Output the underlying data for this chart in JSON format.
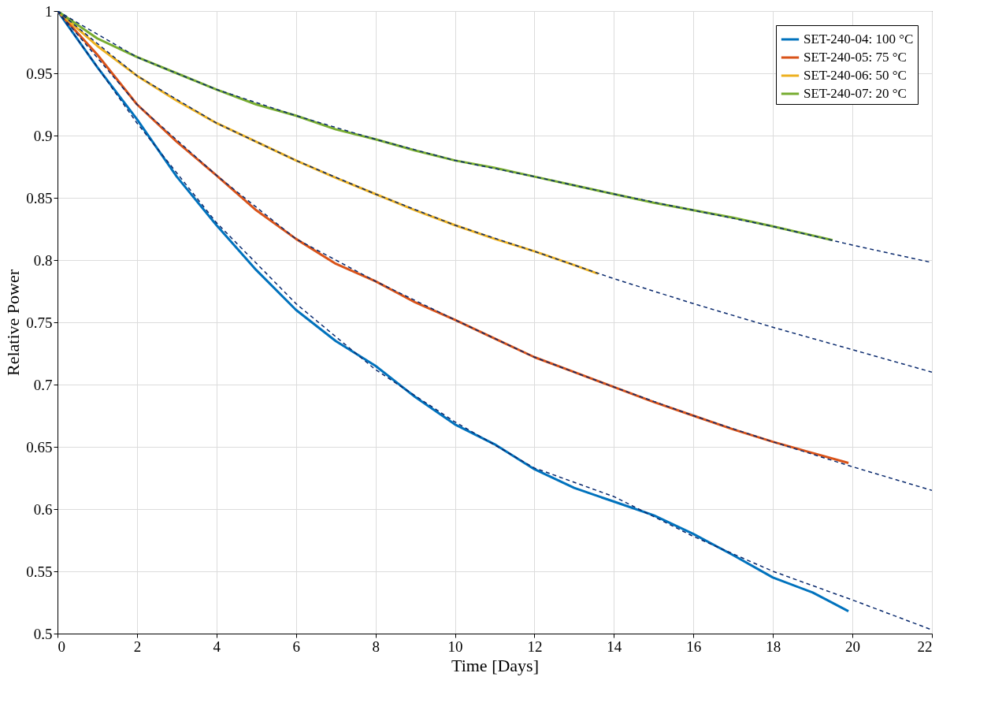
{
  "chart_data": {
    "type": "line",
    "xlabel": "Time [Days]",
    "ylabel": "Relative Power",
    "xlim": [
      0,
      22
    ],
    "ylim": [
      0.5,
      1
    ],
    "xticks": [
      0,
      2,
      4,
      6,
      8,
      10,
      12,
      14,
      16,
      18,
      20,
      22
    ],
    "yticks": [
      0.5,
      0.55,
      0.6,
      0.65,
      0.7,
      0.75,
      0.8,
      0.85,
      0.9,
      0.95,
      1
    ],
    "grid": true,
    "legend": "top right",
    "marker": "none",
    "series": [
      {
        "name": "SET-240-04: 100 °C",
        "color": "#0072bd",
        "x": [
          0,
          1,
          2,
          3,
          4,
          5,
          6,
          7,
          8,
          9,
          10,
          11,
          12,
          13,
          14,
          15,
          16,
          17,
          18,
          19,
          19.9
        ],
        "values": [
          1,
          0.955,
          0.913,
          0.867,
          0.828,
          0.792,
          0.76,
          0.735,
          0.715,
          0.69,
          0.668,
          0.652,
          0.632,
          0.617,
          0.606,
          0.595,
          0.58,
          0.563,
          0.545,
          0.533,
          0.518
        ],
        "line_style": "solid"
      },
      {
        "name": "SET-240-05:   75 °C",
        "color": "#d95319",
        "x": [
          0,
          1,
          2,
          3,
          4,
          5,
          6,
          7,
          8,
          9,
          10,
          11,
          12,
          13,
          14,
          15,
          16,
          17,
          18,
          19,
          19.9
        ],
        "values": [
          1,
          0.965,
          0.925,
          0.895,
          0.868,
          0.84,
          0.817,
          0.797,
          0.783,
          0.766,
          0.752,
          0.737,
          0.722,
          0.71,
          0.698,
          0.686,
          0.675,
          0.664,
          0.654,
          0.645,
          0.637
        ],
        "line_style": "solid"
      },
      {
        "name": "SET-240-06:   50 °C",
        "color": "#edb120",
        "x": [
          0,
          1,
          2,
          3,
          4,
          5,
          6,
          7,
          8,
          9,
          10,
          11,
          12,
          13,
          13.6
        ],
        "values": [
          1,
          0.972,
          0.948,
          0.928,
          0.91,
          0.895,
          0.88,
          0.866,
          0.853,
          0.84,
          0.828,
          0.817,
          0.807,
          0.796,
          0.789
        ],
        "line_style": "solid"
      },
      {
        "name": "SET-240-07:   20 °C",
        "color": "#77ac30",
        "x": [
          0,
          1,
          2,
          3,
          4,
          5,
          6,
          7,
          8,
          9,
          10,
          11,
          12,
          13,
          14,
          15,
          16,
          17,
          18,
          19.5
        ],
        "values": [
          1,
          0.978,
          0.963,
          0.95,
          0.937,
          0.925,
          0.916,
          0.905,
          0.897,
          0.888,
          0.88,
          0.874,
          0.867,
          0.86,
          0.853,
          0.846,
          0.84,
          0.834,
          0.827,
          0.816
        ],
        "line_style": "solid"
      },
      {
        "color": "#0a2a6e",
        "x": [
          0,
          2,
          4,
          6,
          8,
          10,
          12,
          14,
          16,
          18,
          20,
          22
        ],
        "values": [
          1,
          0.91,
          0.83,
          0.765,
          0.712,
          0.67,
          0.633,
          0.61,
          0.578,
          0.55,
          0.527,
          0.503
        ],
        "line_style": "dashed"
      },
      {
        "color": "#0a2a6e",
        "x": [
          0,
          2,
          4,
          6,
          8,
          10,
          12,
          14,
          16,
          18,
          20,
          22
        ],
        "values": [
          1,
          0.925,
          0.868,
          0.817,
          0.783,
          0.752,
          0.722,
          0.698,
          0.675,
          0.654,
          0.634,
          0.615
        ],
        "line_style": "dashed"
      },
      {
        "color": "#0a2a6e",
        "x": [
          0,
          2,
          4,
          6,
          8,
          10,
          12,
          14,
          16,
          18,
          20,
          22
        ],
        "values": [
          1,
          0.948,
          0.91,
          0.88,
          0.853,
          0.828,
          0.807,
          0.785,
          0.765,
          0.746,
          0.728,
          0.71
        ],
        "line_style": "dashed"
      },
      {
        "color": "#0a2a6e",
        "x": [
          0,
          2,
          4,
          6,
          8,
          10,
          12,
          14,
          16,
          18,
          20,
          22
        ],
        "values": [
          1,
          0.963,
          0.937,
          0.916,
          0.897,
          0.88,
          0.867,
          0.853,
          0.84,
          0.827,
          0.812,
          0.798
        ],
        "line_style": "dashed"
      }
    ]
  }
}
